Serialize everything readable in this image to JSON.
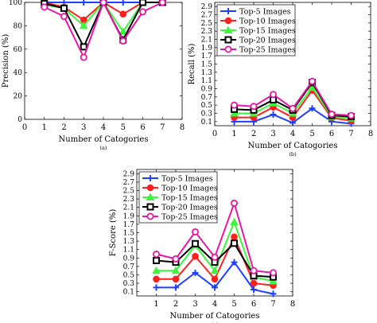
{
  "series_colors": [
    "#1f3fff",
    "#ff1f1f",
    "#3cf53c",
    "#000000",
    "#e617a6"
  ],
  "series_markers": [
    "plus",
    "circle",
    "triangle",
    "square",
    "circle-open"
  ],
  "chart_data": [
    {
      "id": "a",
      "type": "line",
      "caption": "(a)",
      "xlabel": "Number of Catogories",
      "ylabel": "Precision (%)",
      "xlim": [
        0,
        8
      ],
      "ylim": [
        0,
        100
      ],
      "xticks": [
        0,
        1,
        2,
        3,
        4,
        5,
        6,
        7,
        8
      ],
      "yticks": [
        0,
        20,
        40,
        60,
        80,
        100
      ],
      "x": [
        1,
        2,
        3,
        4,
        5,
        6,
        7
      ],
      "legend": false,
      "series": [
        {
          "name": "Top-5 Images",
          "values": [
            100,
            100,
            100,
            100,
            100,
            100,
            100
          ]
        },
        {
          "name": "Top-10 Images",
          "values": [
            100,
            96,
            85,
            100,
            90,
            100,
            100
          ]
        },
        {
          "name": "Top-15 Images",
          "values": [
            98,
            95,
            80,
            100,
            75,
            100,
            100
          ]
        },
        {
          "name": "Top-20 Images",
          "values": [
            99,
            95,
            62,
            100,
            68,
            100,
            100
          ]
        },
        {
          "name": "Top-25 Images",
          "values": [
            96,
            88,
            53,
            100,
            67,
            92,
            100
          ]
        }
      ]
    },
    {
      "id": "b",
      "type": "line",
      "caption": "(b)",
      "xlabel": "Number of Catogories",
      "ylabel": "Recall (%)",
      "xlim": [
        0,
        8
      ],
      "ylim": [
        0,
        3
      ],
      "xticks": [
        0,
        1,
        2,
        3,
        4,
        5,
        6,
        7,
        8
      ],
      "yticks": [
        0.1,
        0.3,
        0.5,
        0.7,
        0.9,
        1.1,
        1.3,
        1.5,
        1.7,
        1.9,
        2.1,
        2.3,
        2.5,
        2.7,
        2.9
      ],
      "x": [
        1,
        2,
        3,
        4,
        5,
        6,
        7
      ],
      "legend": true,
      "series": [
        {
          "name": "Top-5 Images",
          "values": [
            0.1,
            0.1,
            0.27,
            0.07,
            0.42,
            0.1,
            0.05
          ]
        },
        {
          "name": "Top-10 Images",
          "values": [
            0.2,
            0.2,
            0.45,
            0.2,
            0.86,
            0.19,
            0.12
          ]
        },
        {
          "name": "Top-15 Images",
          "values": [
            0.3,
            0.3,
            0.55,
            0.3,
            0.93,
            0.22,
            0.18
          ]
        },
        {
          "name": "Top-20 Images",
          "values": [
            0.4,
            0.38,
            0.63,
            0.38,
            1.05,
            0.25,
            0.22
          ]
        },
        {
          "name": "Top-25 Images",
          "values": [
            0.5,
            0.47,
            0.76,
            0.42,
            1.08,
            0.28,
            0.25
          ]
        }
      ]
    },
    {
      "id": "c",
      "type": "line",
      "caption": "(c)",
      "xlabel": "Number of Catogories",
      "ylabel": "F-Score (%)",
      "xlim": [
        0,
        8
      ],
      "ylim": [
        0,
        3
      ],
      "xticks": [
        1,
        2,
        3,
        4,
        5,
        6,
        7,
        8
      ],
      "yticks": [
        0.1,
        0.3,
        0.5,
        0.7,
        0.9,
        1.1,
        1.3,
        1.5,
        1.7,
        1.9,
        2.1,
        2.3,
        2.5,
        2.7,
        2.9
      ],
      "x": [
        1,
        2,
        3,
        4,
        5,
        6,
        7
      ],
      "legend": true,
      "series": [
        {
          "name": "Top-5 Images",
          "values": [
            0.2,
            0.2,
            0.55,
            0.2,
            0.8,
            0.15,
            0.05
          ]
        },
        {
          "name": "Top-10 Images",
          "values": [
            0.4,
            0.4,
            0.94,
            0.4,
            1.4,
            0.3,
            0.25
          ]
        },
        {
          "name": "Top-15 Images",
          "values": [
            0.6,
            0.6,
            1.2,
            0.6,
            1.75,
            0.45,
            0.35
          ]
        },
        {
          "name": "Top-20 Images",
          "values": [
            0.84,
            0.8,
            1.24,
            0.8,
            1.25,
            0.48,
            0.45
          ]
        },
        {
          "name": "Top-25 Images",
          "values": [
            0.99,
            0.88,
            1.52,
            0.92,
            2.2,
            0.6,
            0.55
          ]
        }
      ]
    }
  ]
}
